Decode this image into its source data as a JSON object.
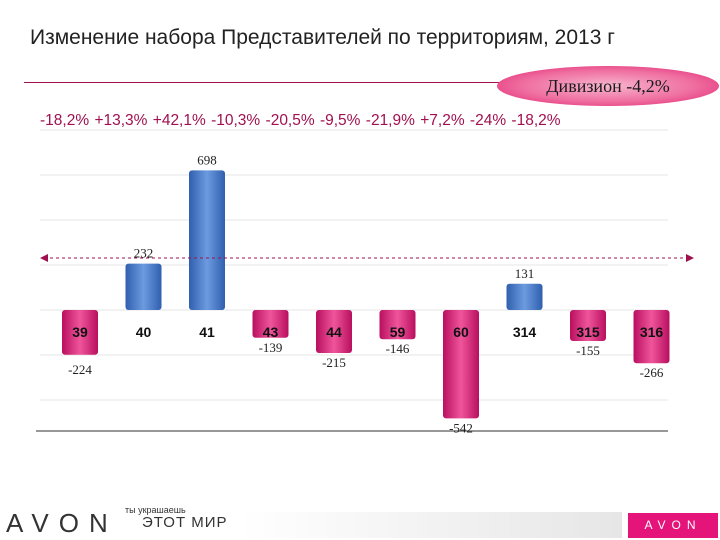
{
  "title": "Изменение набора Представителей по территориям, 2013 г",
  "division_badge": "Дивизион  -4,2%",
  "percent_labels": [
    "-18,2%",
    "+13,3%",
    "+42,1%",
    "-10,3%",
    "-20,5%",
    "-9,5%",
    "-21,9%",
    "+7,2%",
    "-24%",
    "-18,2%"
  ],
  "colors": {
    "positive": "#4a7fd0",
    "negative": "#e0187a",
    "accent": "#a0104f",
    "badge": "#ef6ea0"
  },
  "chart_data": {
    "type": "bar",
    "categories": [
      "39",
      "40",
      "41",
      "43",
      "44",
      "59",
      "60",
      "314",
      "315",
      "316"
    ],
    "values": [
      -224,
      232,
      698,
      -139,
      -215,
      -146,
      -542,
      131,
      -155,
      -266
    ],
    "value_labels": [
      "-224",
      "232",
      "698",
      "-139",
      "-215",
      "-146",
      "-542",
      "131",
      "-155",
      "-266"
    ],
    "reference_line": "dashed horizontal line with arrows",
    "title": "Изменение набора Представителей по территориям, 2013 г"
  },
  "footer": {
    "brand_left": "AVON",
    "slogan_top": "ты украшаешь",
    "slogan": "ЭТОТ МИР",
    "brand_right": "AVON"
  }
}
